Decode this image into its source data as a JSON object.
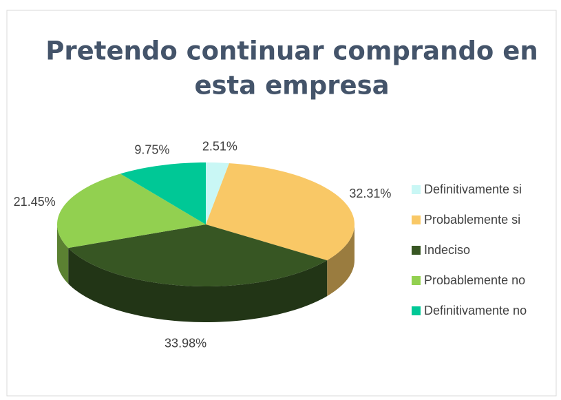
{
  "chart_data": {
    "type": "pie",
    "title": [
      "Pretendo continuar comprando en",
      "esta empresa"
    ],
    "categories": [
      "Definitivamente si",
      "Probablemente si",
      "Indeciso",
      "Probablemente no",
      "Definitivamente no"
    ],
    "values": [
      2.51,
      32.31,
      33.98,
      21.45,
      9.75
    ],
    "value_labels": [
      "2.51%",
      "32.31%",
      "33.98%",
      "21.45%",
      "9.75%"
    ],
    "colors": [
      "#c9f7f5",
      "#f9c866",
      "#375623",
      "#92d050",
      "#00c896"
    ],
    "legend": "right"
  }
}
